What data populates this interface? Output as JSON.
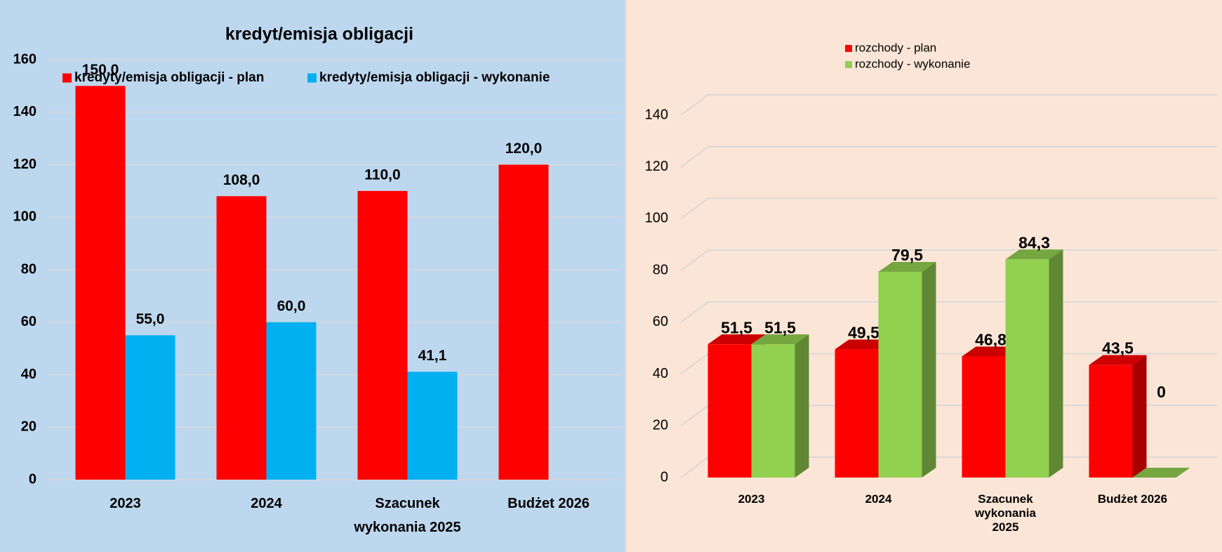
{
  "chart_data": [
    {
      "type": "bar",
      "title": "kredyt/emisja obligacji",
      "categories": [
        "2023",
        "2024",
        "Szacunek wykonania 2025",
        "Budżet 2026"
      ],
      "series": [
        {
          "name": "kredyty/emisja obligacji - plan",
          "color": "#ff0000",
          "values": [
            150,
            108,
            110,
            120
          ],
          "value_labels": [
            "150,0",
            "108,0",
            "110,0",
            "120,0"
          ]
        },
        {
          "name": "kredyty/emisja obligacji - wykonanie",
          "color": "#00b0f0",
          "values": [
            55,
            60,
            41.1,
            null
          ],
          "value_labels": [
            "55,0",
            "60,0",
            "41,1",
            null
          ]
        }
      ],
      "ylim": [
        0,
        160
      ],
      "yticks": [
        0,
        20,
        40,
        60,
        80,
        100,
        120,
        140,
        160
      ],
      "grid": true,
      "legend": "top"
    },
    {
      "type": "bar3d",
      "categories": [
        "2023",
        "2024",
        "Szacunek wykonania 2025",
        "Budżet 2026"
      ],
      "series": [
        {
          "name": "rozchody - plan",
          "color": "#ff0000",
          "values": [
            51.5,
            49.5,
            46.8,
            43.5
          ],
          "value_labels": [
            "51,5",
            "49,5",
            "46,8",
            "43,5"
          ]
        },
        {
          "name": "rozchody - wykonanie",
          "color": "#92d050",
          "values": [
            51.5,
            79.5,
            84.3,
            0
          ],
          "value_labels": [
            "51,5",
            "79,5",
            "84,3",
            "0"
          ]
        }
      ],
      "ylim": [
        0,
        140
      ],
      "yticks": [
        0,
        20,
        40,
        60,
        80,
        100,
        120,
        140
      ],
      "grid": true,
      "legend": "top"
    }
  ]
}
